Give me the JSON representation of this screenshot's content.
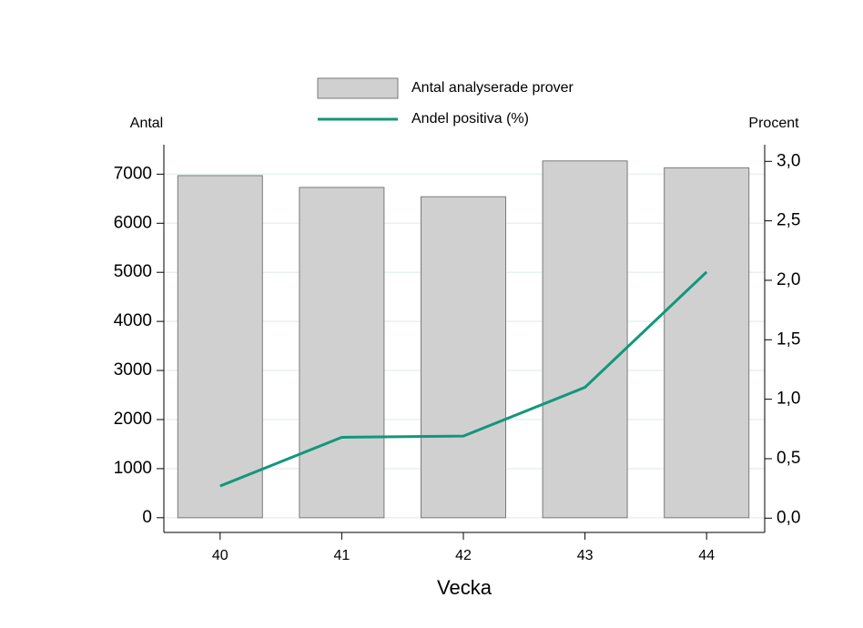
{
  "chart_data": {
    "type": "bar",
    "xlabel": "Vecka",
    "ylabel": "Antal",
    "y2label": "Procent",
    "categories": [
      "40",
      "41",
      "42",
      "43",
      "44"
    ],
    "series": [
      {
        "name": "Antal analyserade prover",
        "type": "bar",
        "color": "#d0d0d0",
        "values": [
          6970,
          6730,
          6540,
          7270,
          7130
        ]
      },
      {
        "name": "Andel positiva (%)",
        "type": "line",
        "axis": "y2",
        "color": "#12977b",
        "values": [
          0.27,
          0.68,
          0.69,
          1.1,
          2.07
        ]
      }
    ],
    "ylim": [
      -300,
      7600
    ],
    "yticks": [
      0,
      1000,
      2000,
      3000,
      4000,
      5000,
      6000,
      7000
    ],
    "y2lim": [
      -0.12,
      3.14
    ],
    "y2ticks": [
      {
        "value": 0,
        "label": "0,0"
      },
      {
        "value": 0.5,
        "label": "0,5"
      },
      {
        "value": 1,
        "label": "1,0"
      },
      {
        "value": 1.5,
        "label": "1,5"
      },
      {
        "value": 2,
        "label": "2,0"
      },
      {
        "value": 2.5,
        "label": "2,5"
      },
      {
        "value": 3,
        "label": "3,0"
      }
    ],
    "grid": true
  }
}
